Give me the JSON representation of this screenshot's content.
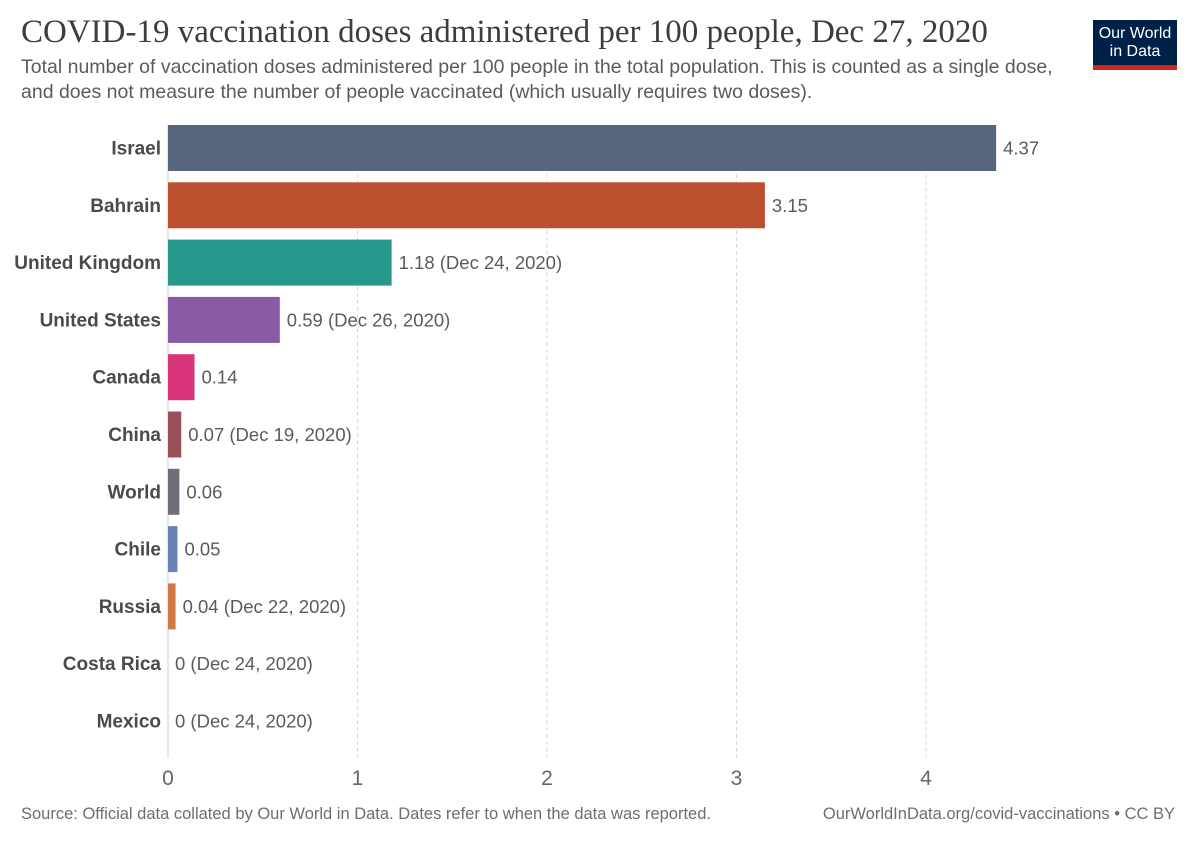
{
  "header": {
    "title": "COVID-19 vaccination doses administered per 100 people, Dec 27, 2020",
    "subtitle": "Total number of vaccination doses administered per 100 people in the total population. This is counted as a single dose, and does not measure the number of people vaccinated (which usually requires two doses).",
    "logo_line1": "Our World",
    "logo_line2": "in Data"
  },
  "footer": {
    "source": "Source: Official data collated by Our World in Data. Dates refer to when the data was reported.",
    "link": "OurWorldInData.org/covid-vaccinations • CC BY"
  },
  "chart_data": {
    "type": "bar",
    "orientation": "horizontal",
    "title": "COVID-19 vaccination doses administered per 100 people, Dec 27, 2020",
    "xlim": [
      0,
      4.5
    ],
    "xticks": [
      0,
      1,
      2,
      3,
      4
    ],
    "grid": "vertical dashed",
    "categories": [
      "Israel",
      "Bahrain",
      "United Kingdom",
      "United States",
      "Canada",
      "China",
      "World",
      "Chile",
      "Russia",
      "Costa Rica",
      "Mexico"
    ],
    "values": [
      4.37,
      3.15,
      1.18,
      0.59,
      0.14,
      0.07,
      0.06,
      0.05,
      0.04,
      0,
      0
    ],
    "value_labels": [
      "4.37",
      "3.15",
      "1.18 (Dec 24, 2020)",
      "0.59 (Dec 26, 2020)",
      "0.14",
      "0.07 (Dec 19, 2020)",
      "0.06",
      "0.05",
      "0.04 (Dec 22, 2020)",
      "0 (Dec 24, 2020)",
      "0 (Dec 24, 2020)"
    ],
    "colors": [
      "#56667c",
      "#bc4f2e",
      "#26988c",
      "#8a5aa5",
      "#d8347a",
      "#995058",
      "#6e6f78",
      "#6883b4",
      "#d27a47",
      "#b8b8b8",
      "#b8b8b8"
    ]
  }
}
